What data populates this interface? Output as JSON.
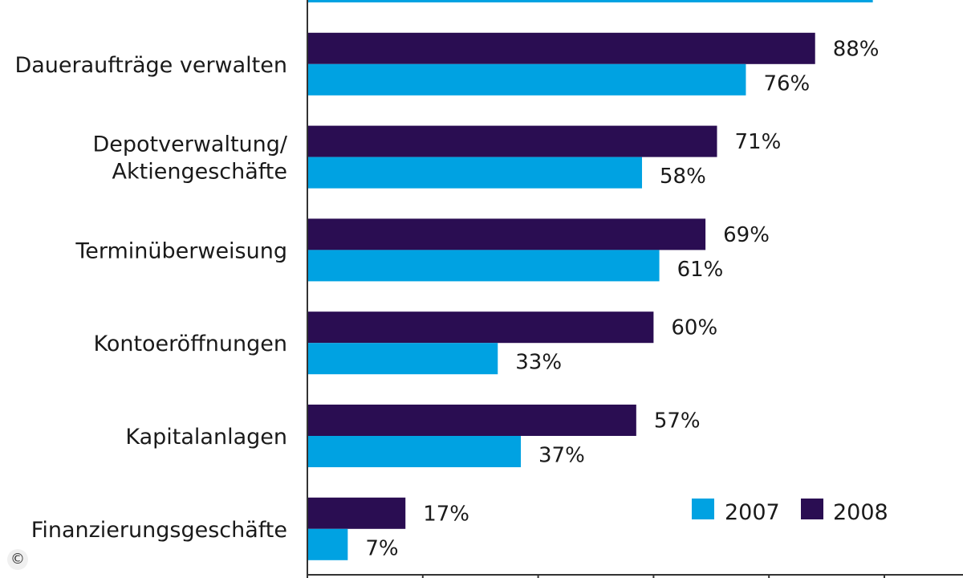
{
  "chart_data": {
    "type": "bar",
    "orientation": "horizontal",
    "categories": [
      "",
      "Daueraufträge verwalten",
      "Depotverwaltung/\nAktiengeschäfte",
      "Terminüberweisung",
      "Kontoeröffnungen",
      "Kapitalanlagen",
      "Finanzierungsgeschäfte"
    ],
    "series": [
      {
        "name": "2008",
        "color": "#2a0d52",
        "values": [
          null,
          88,
          71,
          69,
          60,
          57,
          17
        ],
        "labels": [
          "",
          "88%",
          "71%",
          "69%",
          "60%",
          "57%",
          "17%"
        ]
      },
      {
        "name": "2007",
        "color": "#00a2e2",
        "values": [
          98,
          76,
          58,
          61,
          33,
          37,
          7
        ],
        "labels": [
          "",
          "76%",
          "58%",
          "61%",
          "33%",
          "37%",
          "7%"
        ]
      }
    ],
    "xlim": [
      0,
      100
    ],
    "legend": {
      "position": "bottom-right",
      "order": [
        "2007",
        "2008"
      ]
    },
    "grid": false
  },
  "copyright_symbol": "©"
}
